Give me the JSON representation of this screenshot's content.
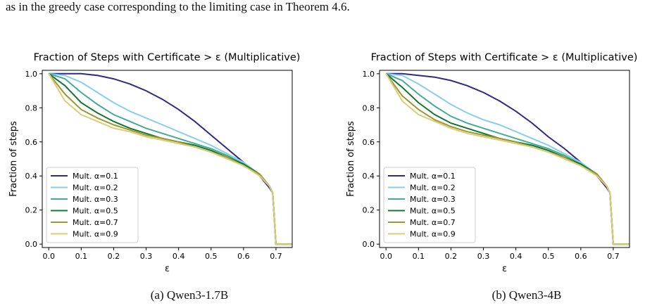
{
  "top_text": "as in the greedy case corresponding to the limiting case in Theorem 4.6.",
  "chart_data": [
    {
      "type": "line",
      "title": "Fraction of Steps with Certificate > ε  (Multiplicative)",
      "xlabel": "ε",
      "ylabel": "Fraction of steps",
      "xlim": [
        -0.02,
        0.75
      ],
      "ylim": [
        -0.02,
        1.02
      ],
      "xticks": [
        "0.0",
        "0.1",
        "0.2",
        "0.3",
        "0.4",
        "0.5",
        "0.6",
        "0.7"
      ],
      "yticks": [
        "0.0",
        "0.2",
        "0.4",
        "0.6",
        "0.8",
        "1.0"
      ],
      "legend_position": "lower-left",
      "grid": false,
      "caption": "(a) Qwen3-1.7B",
      "series": [
        {
          "name": "Mult. α=0.1",
          "color": "#2e2a87",
          "x": [
            0,
            0.05,
            0.1,
            0.15,
            0.2,
            0.25,
            0.3,
            0.35,
            0.4,
            0.45,
            0.5,
            0.55,
            0.6,
            0.65,
            0.68,
            0.69,
            0.7,
            0.75
          ],
          "y": [
            1.0,
            1.0,
            1.0,
            0.99,
            0.97,
            0.94,
            0.9,
            0.85,
            0.79,
            0.72,
            0.64,
            0.56,
            0.48,
            0.4,
            0.33,
            0.3,
            0.0,
            0.0
          ]
        },
        {
          "name": "Mult. α=0.2",
          "color": "#87ceeb",
          "x": [
            0,
            0.05,
            0.1,
            0.15,
            0.2,
            0.25,
            0.3,
            0.35,
            0.4,
            0.45,
            0.5,
            0.55,
            0.6,
            0.65,
            0.68,
            0.69,
            0.7,
            0.75
          ],
          "y": [
            1.0,
            0.99,
            0.95,
            0.89,
            0.83,
            0.78,
            0.74,
            0.7,
            0.66,
            0.62,
            0.58,
            0.53,
            0.48,
            0.41,
            0.34,
            0.3,
            0.0,
            0.0
          ]
        },
        {
          "name": "Mult. α=0.3",
          "color": "#44aa99",
          "x": [
            0,
            0.05,
            0.1,
            0.15,
            0.2,
            0.25,
            0.3,
            0.35,
            0.4,
            0.45,
            0.5,
            0.55,
            0.6,
            0.65,
            0.68,
            0.69,
            0.7,
            0.75
          ],
          "y": [
            1.0,
            0.97,
            0.89,
            0.82,
            0.76,
            0.72,
            0.68,
            0.65,
            0.62,
            0.59,
            0.56,
            0.52,
            0.47,
            0.41,
            0.34,
            0.3,
            0.0,
            0.0
          ]
        },
        {
          "name": "Mult. α=0.5",
          "color": "#117733",
          "x": [
            0,
            0.05,
            0.1,
            0.15,
            0.2,
            0.25,
            0.3,
            0.35,
            0.4,
            0.45,
            0.5,
            0.55,
            0.6,
            0.65,
            0.68,
            0.69,
            0.7,
            0.75
          ],
          "y": [
            1.0,
            0.93,
            0.83,
            0.77,
            0.72,
            0.68,
            0.65,
            0.62,
            0.6,
            0.58,
            0.55,
            0.51,
            0.47,
            0.41,
            0.34,
            0.3,
            0.0,
            0.0
          ]
        },
        {
          "name": "Mult. α=0.7",
          "color": "#999933",
          "x": [
            0,
            0.05,
            0.1,
            0.15,
            0.2,
            0.25,
            0.3,
            0.35,
            0.4,
            0.45,
            0.5,
            0.55,
            0.6,
            0.65,
            0.68,
            0.69,
            0.7,
            0.75
          ],
          "y": [
            1.0,
            0.88,
            0.79,
            0.74,
            0.7,
            0.67,
            0.64,
            0.62,
            0.6,
            0.57,
            0.54,
            0.51,
            0.46,
            0.41,
            0.34,
            0.3,
            0.0,
            0.0
          ]
        },
        {
          "name": "Mult. α=0.9",
          "color": "#ddcc77",
          "x": [
            0,
            0.05,
            0.1,
            0.15,
            0.2,
            0.25,
            0.3,
            0.35,
            0.4,
            0.45,
            0.5,
            0.55,
            0.6,
            0.65,
            0.68,
            0.69,
            0.7,
            0.75
          ],
          "y": [
            1.0,
            0.84,
            0.76,
            0.72,
            0.68,
            0.66,
            0.63,
            0.61,
            0.59,
            0.57,
            0.54,
            0.5,
            0.46,
            0.4,
            0.34,
            0.3,
            0.0,
            0.0
          ]
        }
      ]
    },
    {
      "type": "line",
      "title": "Fraction of Steps with Certificate > ε  (Multiplicative)",
      "xlabel": "ε",
      "ylabel": "Fraction of steps",
      "xlim": [
        -0.02,
        0.75
      ],
      "ylim": [
        -0.02,
        1.02
      ],
      "xticks": [
        "0.0",
        "0.1",
        "0.2",
        "0.3",
        "0.4",
        "0.5",
        "0.6",
        "0.7"
      ],
      "yticks": [
        "0.0",
        "0.2",
        "0.4",
        "0.6",
        "0.8",
        "1.0"
      ],
      "legend_position": "lower-left",
      "grid": false,
      "caption": "(b) Qwen3-4B",
      "series": [
        {
          "name": "Mult. α=0.1",
          "color": "#2e2a87",
          "x": [
            0,
            0.05,
            0.1,
            0.15,
            0.2,
            0.25,
            0.3,
            0.35,
            0.4,
            0.45,
            0.5,
            0.55,
            0.6,
            0.65,
            0.68,
            0.69,
            0.7,
            0.75
          ],
          "y": [
            1.0,
            1.0,
            0.99,
            0.98,
            0.96,
            0.93,
            0.89,
            0.84,
            0.78,
            0.71,
            0.63,
            0.56,
            0.48,
            0.4,
            0.33,
            0.3,
            0.0,
            0.0
          ]
        },
        {
          "name": "Mult. α=0.2",
          "color": "#87ceeb",
          "x": [
            0,
            0.05,
            0.1,
            0.15,
            0.2,
            0.25,
            0.3,
            0.35,
            0.4,
            0.45,
            0.5,
            0.55,
            0.6,
            0.65,
            0.68,
            0.69,
            0.7,
            0.75
          ],
          "y": [
            1.0,
            0.99,
            0.94,
            0.88,
            0.82,
            0.77,
            0.73,
            0.7,
            0.66,
            0.62,
            0.58,
            0.53,
            0.48,
            0.41,
            0.34,
            0.3,
            0.0,
            0.0
          ]
        },
        {
          "name": "Mult. α=0.3",
          "color": "#44aa99",
          "x": [
            0,
            0.05,
            0.1,
            0.15,
            0.2,
            0.25,
            0.3,
            0.35,
            0.4,
            0.45,
            0.5,
            0.55,
            0.6,
            0.65,
            0.68,
            0.69,
            0.7,
            0.75
          ],
          "y": [
            1.0,
            0.96,
            0.88,
            0.81,
            0.75,
            0.71,
            0.68,
            0.65,
            0.62,
            0.59,
            0.56,
            0.52,
            0.47,
            0.41,
            0.34,
            0.3,
            0.0,
            0.0
          ]
        },
        {
          "name": "Mult. α=0.5",
          "color": "#117733",
          "x": [
            0,
            0.05,
            0.1,
            0.15,
            0.2,
            0.25,
            0.3,
            0.35,
            0.4,
            0.45,
            0.5,
            0.55,
            0.6,
            0.65,
            0.68,
            0.69,
            0.7,
            0.75
          ],
          "y": [
            1.0,
            0.92,
            0.83,
            0.76,
            0.71,
            0.68,
            0.65,
            0.62,
            0.6,
            0.58,
            0.55,
            0.51,
            0.47,
            0.41,
            0.34,
            0.3,
            0.0,
            0.0
          ]
        },
        {
          "name": "Mult. α=0.7",
          "color": "#999933",
          "x": [
            0,
            0.05,
            0.1,
            0.15,
            0.2,
            0.25,
            0.3,
            0.35,
            0.4,
            0.45,
            0.5,
            0.55,
            0.6,
            0.65,
            0.68,
            0.69,
            0.7,
            0.75
          ],
          "y": [
            1.0,
            0.87,
            0.79,
            0.73,
            0.69,
            0.66,
            0.64,
            0.62,
            0.6,
            0.57,
            0.54,
            0.51,
            0.46,
            0.41,
            0.34,
            0.3,
            0.0,
            0.0
          ]
        },
        {
          "name": "Mult. α=0.9",
          "color": "#ddcc77",
          "x": [
            0,
            0.05,
            0.1,
            0.15,
            0.2,
            0.25,
            0.3,
            0.35,
            0.4,
            0.45,
            0.5,
            0.55,
            0.6,
            0.65,
            0.68,
            0.69,
            0.7,
            0.75
          ],
          "y": [
            1.0,
            0.84,
            0.76,
            0.72,
            0.68,
            0.65,
            0.63,
            0.61,
            0.59,
            0.57,
            0.54,
            0.5,
            0.46,
            0.4,
            0.34,
            0.3,
            0.0,
            0.0
          ]
        }
      ]
    }
  ]
}
